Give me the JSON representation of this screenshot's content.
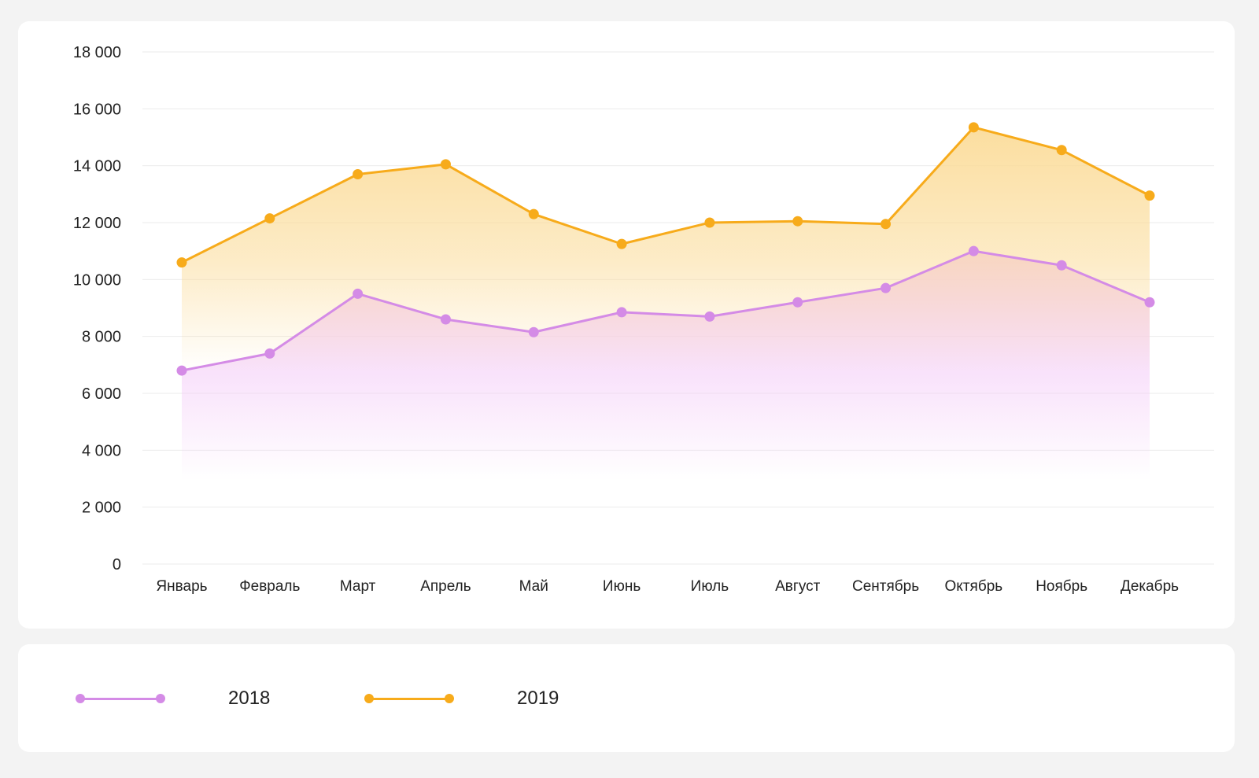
{
  "chart_data": {
    "type": "line",
    "area_fill": true,
    "categories": [
      "Январь",
      "Февраль",
      "Март",
      "Апрель",
      "Май",
      "Июнь",
      "Июль",
      "Август",
      "Сентябрь",
      "Октябрь",
      "Ноябрь",
      "Декабрь"
    ],
    "yticks": [
      "0",
      "2 000",
      "4 000",
      "6 000",
      "8 000",
      "10 000",
      "12 000",
      "14 000",
      "16 000",
      "18 000"
    ],
    "ylim": [
      0,
      18000
    ],
    "grid": true,
    "legend_position": "bottom",
    "series": [
      {
        "name": "2018",
        "color": "#d48be6",
        "fill": "#f4ccf8",
        "values": [
          6800,
          7400,
          9500,
          8600,
          8150,
          8850,
          8700,
          9200,
          9700,
          11000,
          10500,
          9200
        ]
      },
      {
        "name": "2019",
        "color": "#f7ab1b",
        "fill": "#fbdc9a",
        "values": [
          10600,
          12150,
          13700,
          14050,
          12300,
          11250,
          12000,
          12050,
          11950,
          15350,
          14550,
          12950
        ]
      }
    ]
  }
}
